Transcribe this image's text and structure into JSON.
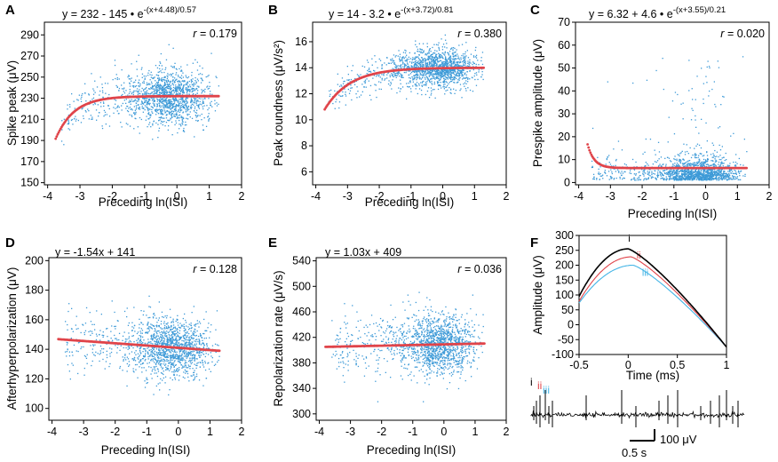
{
  "figure": {
    "title": "",
    "note": ""
  },
  "chart_data": [
    {
      "panel": "A",
      "type": "scatter",
      "title": "",
      "xlabel": "Preceding ln(ISI)",
      "ylabel": "Spike peak (μV)",
      "eq_main": "y = 232 - 145 • e",
      "eq_sup": "-(x+4.48)/0.57",
      "r_label": "r",
      "r_value": "= 0.179",
      "xlim": [
        -4.1,
        2
      ],
      "ylim": [
        148,
        302
      ],
      "xticks": [
        "-4",
        "-3",
        "-2",
        "-1",
        "0",
        "1",
        "2"
      ],
      "yticks": [
        "150",
        "170",
        "190",
        "210",
        "230",
        "250",
        "270",
        "290"
      ],
      "fit": {
        "model": "exp",
        "a": 232,
        "b": 145,
        "c": 4.48,
        "d": 0.57,
        "from": -3.75,
        "to": 1.3
      },
      "cloud": {
        "cx": -0.2,
        "cy": 232,
        "sy": 13,
        "n": 1500
      },
      "scatter_color": "#3d9ad7",
      "fit_color": "#e0444a"
    },
    {
      "panel": "B",
      "type": "scatter",
      "title": "",
      "xlabel": "Preceding ln(ISI)",
      "ylabel": "Peak roundness (μV/s²)",
      "eq_main": "y = 14 - 3.2 • e",
      "eq_sup": "-(x+3.72)/0.81",
      "r_label": "r",
      "r_value": "= 0.380",
      "xlim": [
        -4.1,
        2
      ],
      "ylim": [
        5,
        17.5
      ],
      "xticks": [
        "-4",
        "-3",
        "-2",
        "-1",
        "0",
        "1",
        "2"
      ],
      "yticks": [
        "6",
        "8",
        "10",
        "12",
        "14",
        "16"
      ],
      "fit": {
        "model": "exp",
        "a": 14,
        "b": 3.2,
        "c": 3.72,
        "d": 0.81,
        "from": -3.72,
        "to": 1.3
      },
      "cloud": {
        "cx": -0.2,
        "cy": 14,
        "sy": 0.75,
        "n": 1500
      },
      "scatter_color": "#3d9ad7",
      "fit_color": "#e0444a"
    },
    {
      "panel": "C",
      "type": "scatter",
      "title": "",
      "xlabel": "Preceding ln(ISI)",
      "ylabel": "Prespike amplitude (μV)",
      "eq_main": "y = 6.32 + 4.6 • e",
      "eq_sup": "-(x+3.55)/0.21",
      "r_label": "r",
      "r_value": "= 0.020",
      "xlim": [
        -4.1,
        2
      ],
      "ylim": [
        -1,
        70
      ],
      "xticks": [
        "-4",
        "-3",
        "-2",
        "-1",
        "0",
        "1",
        "2"
      ],
      "yticks": [
        "0",
        "10",
        "20",
        "30",
        "40",
        "50",
        "60",
        "70"
      ],
      "fit": {
        "model": "exp_plus",
        "a": 6.32,
        "b": 4.6,
        "c": 3.55,
        "d": 0.21,
        "from": -3.72,
        "to": 1.3
      },
      "cloud": {
        "cx": -0.2,
        "cy": 6,
        "sy": 6,
        "n": 1500
      },
      "scatter_color": "#3d9ad7",
      "fit_color": "#e0444a"
    },
    {
      "panel": "D",
      "type": "scatter",
      "title": "",
      "xlabel": "Preceding ln(ISI)",
      "ylabel": "Afterhyperpolarization (μV)",
      "eq_main": "y = -1.54x + 141",
      "eq_sup": "",
      "r_label": "r",
      "r_value": "= 0.128",
      "xlim": [
        -4.1,
        2
      ],
      "ylim": [
        92,
        202
      ],
      "xticks": [
        "-4",
        "-3",
        "-2",
        "-1",
        "0",
        "1",
        "2"
      ],
      "yticks": [
        "100",
        "120",
        "140",
        "160",
        "180",
        "200"
      ],
      "fit": {
        "model": "linear",
        "m": -1.54,
        "k": 141,
        "from": -3.8,
        "to": 1.3
      },
      "cloud": {
        "cx": -0.2,
        "cy": 141,
        "sy": 10,
        "n": 1500
      },
      "scatter_color": "#3d9ad7",
      "fit_color": "#e0444a"
    },
    {
      "panel": "E",
      "type": "scatter",
      "title": "",
      "xlabel": "Preceding ln(ISI)",
      "ylabel": "Repolarization rate (μV/s)",
      "eq_main": "y = 1.03x + 409",
      "eq_sup": "",
      "r_label": "r",
      "r_value": "= 0.036",
      "xlim": [
        -4.1,
        2
      ],
      "ylim": [
        290,
        545
      ],
      "xticks": [
        "-4",
        "-3",
        "-2",
        "-1",
        "0",
        "1",
        "2"
      ],
      "yticks": [
        "300",
        "340",
        "380",
        "420",
        "460",
        "500",
        "540"
      ],
      "fit": {
        "model": "linear",
        "m": 1.03,
        "k": 409,
        "from": -3.8,
        "to": 1.3
      },
      "cloud": {
        "cx": -0.2,
        "cy": 409,
        "sy": 24,
        "n": 1500
      },
      "scatter_color": "#3d9ad7",
      "fit_color": "#e0444a"
    },
    {
      "panel": "F",
      "type": "line",
      "title": "",
      "xlabel": "Time (ms)",
      "ylabel": "Amplitude (μV)",
      "xlim": [
        -0.5,
        1
      ],
      "ylim": [
        -100,
        300
      ],
      "xticks": [
        "-0.5",
        "0",
        "0.5",
        "1"
      ],
      "yticks": [
        "-100",
        "-50",
        "0",
        "50",
        "100",
        "150",
        "200",
        "250",
        "300"
      ],
      "series": [
        {
          "name": "i",
          "color": "#000000",
          "peak": 255,
          "tpeak": 0.0
        },
        {
          "name": "ii",
          "color": "#e0444a",
          "peak": 228,
          "tpeak": 0.03
        },
        {
          "name": "iii",
          "color": "#45b5e6",
          "peak": 200,
          "tpeak": 0.05
        }
      ],
      "trace": {
        "labels": [
          "i",
          "ii",
          "iii"
        ],
        "scale_amp": "100 μV",
        "scale_time": "0.5 s"
      }
    }
  ]
}
